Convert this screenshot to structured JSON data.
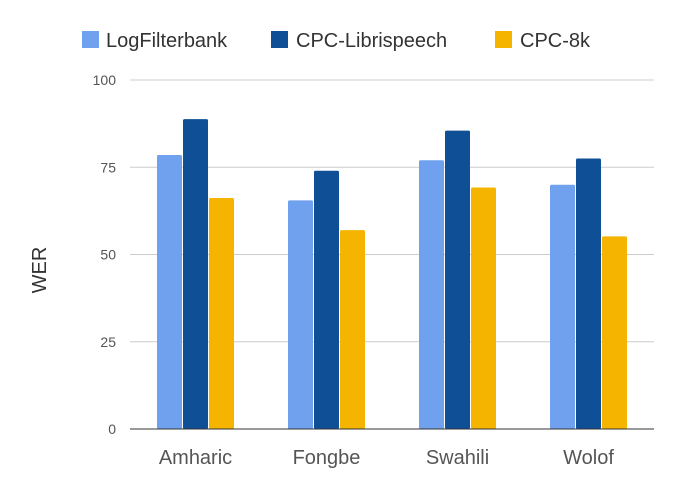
{
  "chart_data": {
    "type": "bar",
    "title": "",
    "xlabel": "",
    "ylabel": "WER",
    "ylim": [
      0,
      100
    ],
    "yticks": [
      0,
      25,
      50,
      75,
      100
    ],
    "grid": true,
    "legend_position": "top",
    "categories": [
      "Amharic",
      "Fongbe",
      "Swahili",
      "Wolof"
    ],
    "series": [
      {
        "name": "LogFilterbank",
        "color": "#6FA1EE",
        "values": [
          78.5,
          65.5,
          77,
          70
        ]
      },
      {
        "name": "CPC-Librispeech",
        "color": "#0E4F96",
        "values": [
          88.8,
          74,
          85.5,
          77.5
        ]
      },
      {
        "name": "CPC-8k",
        "color": "#F5B400",
        "values": [
          66.2,
          57,
          69.2,
          55.2
        ]
      }
    ]
  }
}
